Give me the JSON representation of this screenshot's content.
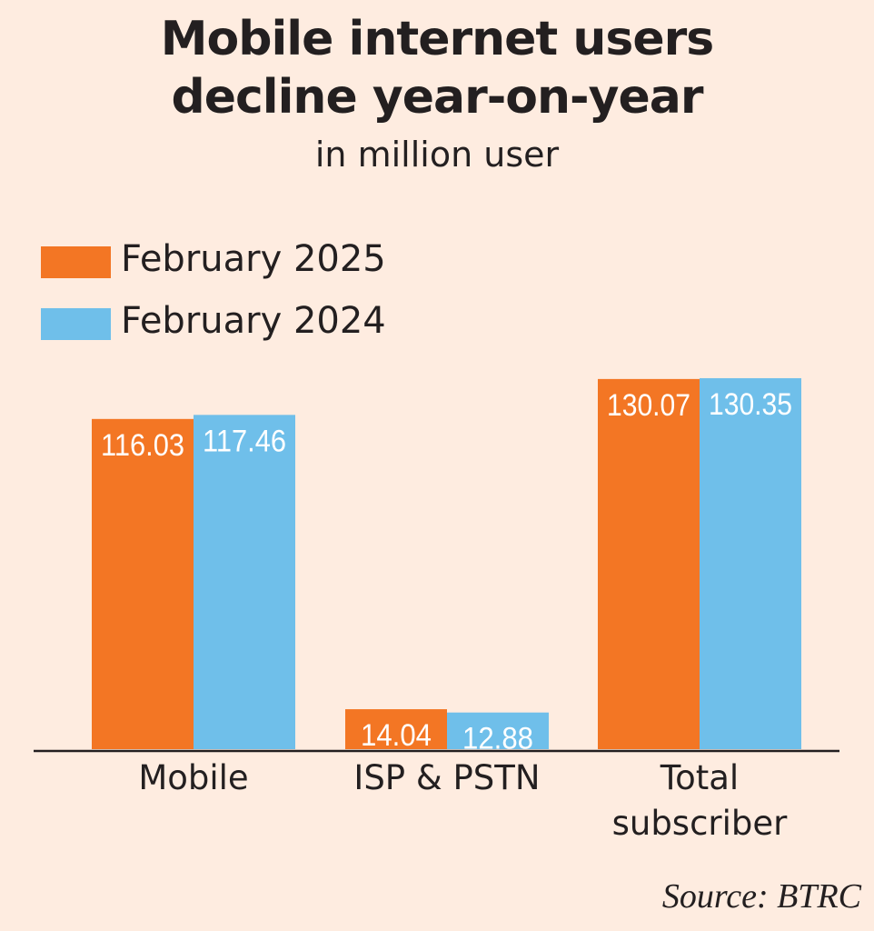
{
  "chart_data": {
    "type": "bar",
    "title": "Mobile internet users decline year-on-year",
    "title_lines": [
      "Mobile internet users",
      "decline year-on-year"
    ],
    "subtitle": "in million user",
    "xlabel": "",
    "ylabel": "",
    "categories": [
      "Mobile",
      "ISP & PSTN",
      "Total subscriber"
    ],
    "category_lines": [
      [
        "Mobile"
      ],
      [
        "ISP & PSTN"
      ],
      [
        "Total",
        "subscriber"
      ]
    ],
    "series": [
      {
        "name": "February 2025",
        "color": "#f37624",
        "values": [
          116.03,
          14.04,
          130.07
        ],
        "labels": [
          "116.03",
          "14.04",
          "130.07"
        ]
      },
      {
        "name": "February 2024",
        "color": "#6fbfea",
        "values": [
          117.46,
          12.88,
          130.35
        ],
        "labels": [
          "117.46",
          "12.88",
          "130.35"
        ]
      }
    ],
    "ylim": [
      0,
      130.35
    ],
    "grid": false,
    "legend": "top-left",
    "source": "Source: BTRC"
  },
  "colors": {
    "background": "#feece0",
    "text": "#231f20",
    "axis": "#231f20"
  }
}
